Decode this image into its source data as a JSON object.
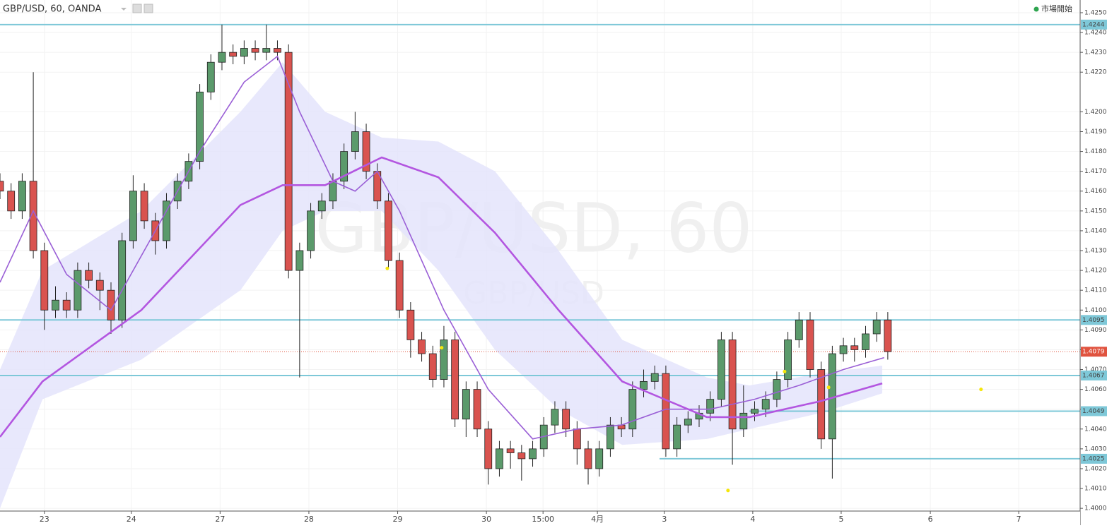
{
  "chart_data": {
    "type": "candlestick",
    "title": "GBP/USD, 60, OANDA",
    "status": "市場開始",
    "watermark": "GBP/USD, 60",
    "watermark_sub": "GBP/USD",
    "xlim": [
      0,
      292
    ],
    "ylim": [
      1.39915,
      1.42564
    ],
    "grid": true,
    "up_color": "#5b9a6b",
    "down_color": "#d9534f",
    "level_color": "#7ec8d8",
    "price_color": "#e0533f",
    "xticks": [
      {
        "value": 12,
        "label": "23"
      },
      {
        "value": 35.5,
        "label": "24"
      },
      {
        "value": 59.5,
        "label": "27"
      },
      {
        "value": 83.5,
        "label": "28"
      },
      {
        "value": 107.5,
        "label": "29"
      },
      {
        "value": 131.5,
        "label": "30"
      },
      {
        "value": 146.8,
        "label": "15:00"
      },
      {
        "value": 161.5,
        "label": "4月"
      },
      {
        "value": 179.6,
        "label": "3"
      },
      {
        "value": 203.5,
        "label": "4"
      },
      {
        "value": 227.4,
        "label": "5"
      },
      {
        "value": 251.5,
        "label": "6"
      },
      {
        "value": 275.4,
        "label": "7"
      }
    ],
    "yticks": [
      {
        "value": 1.4,
        "label": "1.4000"
      },
      {
        "value": 1.401,
        "label": "1.4010"
      },
      {
        "value": 1.402,
        "label": "1.4020"
      },
      {
        "value": 1.403,
        "label": "1.4030"
      },
      {
        "value": 1.404,
        "label": "1.4040"
      },
      {
        "value": 1.405,
        "label": "1.4050"
      },
      {
        "value": 1.406,
        "label": "1.4060"
      },
      {
        "value": 1.407,
        "label": "1.4070"
      },
      {
        "value": 1.408,
        "label": "1.4080"
      },
      {
        "value": 1.409,
        "label": "1.4090"
      },
      {
        "value": 1.41,
        "label": "1.4100"
      },
      {
        "value": 1.411,
        "label": "1.4110"
      },
      {
        "value": 1.412,
        "label": "1.4120"
      },
      {
        "value": 1.413,
        "label": "1.4130"
      },
      {
        "value": 1.414,
        "label": "1.4140"
      },
      {
        "value": 1.415,
        "label": "1.4150"
      },
      {
        "value": 1.416,
        "label": "1.4160"
      },
      {
        "value": 1.417,
        "label": "1.4170"
      },
      {
        "value": 1.418,
        "label": "1.4180"
      },
      {
        "value": 1.419,
        "label": "1.4190"
      },
      {
        "value": 1.42,
        "label": "1.4200"
      },
      {
        "value": 1.422,
        "label": "1.4220"
      },
      {
        "value": 1.423,
        "label": "1.4230"
      },
      {
        "value": 1.424,
        "label": "1.4240"
      },
      {
        "value": 1.425,
        "label": "1.4250"
      }
    ],
    "candles": {
      "x": [
        0,
        3,
        6,
        9,
        12,
        15,
        18,
        21,
        24,
        27,
        30,
        33,
        36,
        39,
        42,
        45,
        48,
        51,
        54,
        57,
        60,
        63,
        66,
        69,
        72,
        75,
        78,
        81,
        84,
        87,
        90,
        93,
        96,
        99,
        102,
        105,
        108,
        111,
        114,
        117,
        120,
        123,
        126,
        129,
        132,
        135,
        138,
        141,
        144,
        147,
        150,
        153,
        156,
        159,
        162,
        165,
        168,
        171,
        174,
        177,
        180,
        183,
        186,
        189,
        192,
        195,
        198,
        201,
        204,
        207,
        210,
        213,
        216,
        219,
        222,
        225,
        228,
        231,
        234,
        237,
        240
      ],
      "open": [
        1.4165,
        1.416,
        1.415,
        1.4165,
        1.413,
        1.41,
        1.4105,
        1.41,
        1.412,
        1.4115,
        1.411,
        1.4095,
        1.4135,
        1.416,
        1.4145,
        1.4135,
        1.4155,
        1.4165,
        1.4175,
        1.421,
        1.4225,
        1.423,
        1.4228,
        1.4232,
        1.423,
        1.4232,
        1.423,
        1.412,
        1.413,
        1.415,
        1.4155,
        1.4165,
        1.418,
        1.419,
        1.417,
        1.4155,
        1.4125,
        1.41,
        1.4085,
        1.4078,
        1.4065,
        1.4085,
        1.4045,
        1.406,
        1.404,
        1.402,
        1.403,
        1.4028,
        1.4025,
        1.403,
        1.4042,
        1.405,
        1.404,
        1.403,
        1.402,
        1.403,
        1.4042,
        1.404,
        1.406,
        1.4064,
        1.4068,
        1.403,
        1.4042,
        1.4045,
        1.4048,
        1.4055,
        1.4085,
        1.404,
        1.4048,
        1.405,
        1.4055,
        1.4065,
        1.4085,
        1.4095,
        1.407,
        1.4035,
        1.4078,
        1.4082,
        1.408,
        1.4088,
        1.4095
      ],
      "high": [
        1.4169,
        1.4164,
        1.4169,
        1.422,
        1.4134,
        1.4112,
        1.4109,
        1.4124,
        1.4124,
        1.4119,
        1.4114,
        1.4139,
        1.4168,
        1.4164,
        1.4149,
        1.4159,
        1.4169,
        1.4179,
        1.4214,
        1.4229,
        1.4244,
        1.4234,
        1.4236,
        1.4236,
        1.4244,
        1.4236,
        1.4234,
        1.4134,
        1.4154,
        1.4159,
        1.4169,
        1.4184,
        1.42,
        1.4194,
        1.4174,
        1.4159,
        1.4129,
        1.4104,
        1.4089,
        1.4082,
        1.4092,
        1.4089,
        1.4064,
        1.4064,
        1.4044,
        1.4034,
        1.4034,
        1.4032,
        1.4034,
        1.4046,
        1.4054,
        1.4054,
        1.4044,
        1.4034,
        1.4034,
        1.4046,
        1.4046,
        1.4064,
        1.407,
        1.4072,
        1.4072,
        1.4046,
        1.4049,
        1.4052,
        1.4059,
        1.4089,
        1.4089,
        1.4062,
        1.4054,
        1.4059,
        1.4069,
        1.4089,
        1.4099,
        1.4099,
        1.4074,
        1.4082,
        1.4086,
        1.4086,
        1.4092,
        1.4099,
        1.4099
      ],
      "low": [
        1.4156,
        1.4146,
        1.4146,
        1.4126,
        1.409,
        1.4096,
        1.4096,
        1.4096,
        1.4111,
        1.41,
        1.4088,
        1.4091,
        1.4131,
        1.4141,
        1.4128,
        1.4131,
        1.4151,
        1.4161,
        1.4171,
        1.4206,
        1.4221,
        1.4224,
        1.4224,
        1.4226,
        1.4226,
        1.4226,
        1.4116,
        1.4066,
        1.4126,
        1.4146,
        1.4151,
        1.4161,
        1.4176,
        1.4166,
        1.4151,
        1.4121,
        1.4096,
        1.4076,
        1.4074,
        1.4061,
        1.4061,
        1.4041,
        1.4036,
        1.4036,
        1.4012,
        1.4016,
        1.402,
        1.4014,
        1.4021,
        1.4026,
        1.4038,
        1.4036,
        1.4022,
        1.4012,
        1.4016,
        1.4026,
        1.4036,
        1.4036,
        1.4056,
        1.406,
        1.4026,
        1.4026,
        1.4038,
        1.4041,
        1.4044,
        1.4051,
        1.4022,
        1.4036,
        1.4044,
        1.4046,
        1.4051,
        1.4061,
        1.4081,
        1.4066,
        1.403,
        1.4015,
        1.4074,
        1.4074,
        1.4076,
        1.4084,
        1.4075
      ],
      "close": [
        1.416,
        1.415,
        1.4165,
        1.413,
        1.41,
        1.4105,
        1.41,
        1.412,
        1.4115,
        1.411,
        1.4095,
        1.4135,
        1.416,
        1.4145,
        1.4135,
        1.4155,
        1.4165,
        1.4175,
        1.421,
        1.4225,
        1.423,
        1.4228,
        1.4232,
        1.423,
        1.4232,
        1.423,
        1.412,
        1.413,
        1.415,
        1.4155,
        1.4165,
        1.418,
        1.419,
        1.417,
        1.4155,
        1.4125,
        1.41,
        1.4085,
        1.4078,
        1.4065,
        1.4085,
        1.4045,
        1.406,
        1.404,
        1.402,
        1.403,
        1.4028,
        1.4025,
        1.403,
        1.4042,
        1.405,
        1.404,
        1.403,
        1.402,
        1.403,
        1.4042,
        1.404,
        1.406,
        1.4064,
        1.4068,
        1.403,
        1.4042,
        1.4045,
        1.4048,
        1.4055,
        1.4085,
        1.404,
        1.4048,
        1.405,
        1.4055,
        1.4065,
        1.4085,
        1.4095,
        1.407,
        1.4035,
        1.4078,
        1.4082,
        1.408,
        1.4088,
        1.4095,
        1.4079
      ]
    },
    "band": {
      "color": "#e4e4fb",
      "x": [
        0,
        11.5,
        38.2,
        65,
        76.4,
        87.9,
        103.2,
        118.5,
        133.8,
        151,
        168.2,
        191.1,
        202.6,
        221.7,
        238.5
      ],
      "upper": [
        1.407,
        1.412,
        1.415,
        1.42,
        1.4225,
        1.42,
        1.4187,
        1.4185,
        1.417,
        1.413,
        1.4085,
        1.4066,
        1.4062,
        1.4068,
        1.4072
      ],
      "lower": [
        1.4,
        1.4055,
        1.4075,
        1.411,
        1.414,
        1.415,
        1.415,
        1.412,
        1.408,
        1.405,
        1.4032,
        1.4035,
        1.404,
        1.4048,
        1.4058
      ]
    },
    "series": [
      {
        "color": "#9a5fd6",
        "width": 1.6,
        "x": [
          0,
          9,
          18,
          30,
          42,
          54,
          66,
          75,
          81,
          90,
          96,
          102,
          108,
          120,
          132,
          144,
          156,
          168,
          180,
          192,
          204,
          216,
          228,
          239
        ],
        "values": [
          1.4114,
          1.415,
          1.4118,
          1.41,
          1.414,
          1.418,
          1.4215,
          1.4228,
          1.42,
          1.4165,
          1.416,
          1.417,
          1.415,
          1.41,
          1.406,
          1.4035,
          1.404,
          1.4042,
          1.405,
          1.405,
          1.4055,
          1.4062,
          1.407,
          1.4076
        ]
      },
      {
        "color": "#b356e0",
        "width": 2.6,
        "x": [
          0,
          11.5,
          38.2,
          65,
          76.4,
          87.9,
          103.2,
          118.5,
          133.8,
          151,
          168.2,
          191.1,
          202.6,
          221.7,
          238.5
        ],
        "values": [
          1.4036,
          1.4064,
          1.41,
          1.4153,
          1.4163,
          1.4163,
          1.4177,
          1.4167,
          1.4139,
          1.41,
          1.4064,
          1.4046,
          1.4046,
          1.4054,
          1.4063
        ]
      }
    ],
    "levels": [
      1.4244,
      1.4095,
      1.4067,
      1.4049,
      1.4025
    ],
    "level_starts": [
      0,
      0,
      0,
      202.6,
      178.3
    ],
    "last_price": 1.4079,
    "markers": {
      "color": "#f5e60a",
      "x": [
        104.7,
        119.4,
        196.8,
        212.1,
        224,
        265.2
      ],
      "values": [
        1.4121,
        1.4081,
        1.4009,
        1.4069,
        1.4061,
        1.406
      ]
    }
  }
}
